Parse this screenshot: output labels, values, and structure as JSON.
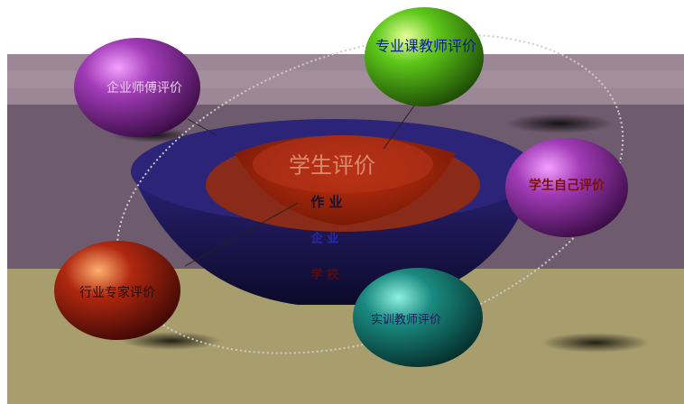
{
  "center": {
    "title": "学生评价",
    "rows": [
      "作 业",
      "企 业",
      "学 校"
    ]
  },
  "nodes": [
    {
      "label": "专业课教师评价"
    },
    {
      "label": "企业师傅评价"
    },
    {
      "label": "学生自己评价"
    },
    {
      "label": "行业专家评价"
    },
    {
      "label": "实训教师评价"
    }
  ]
}
